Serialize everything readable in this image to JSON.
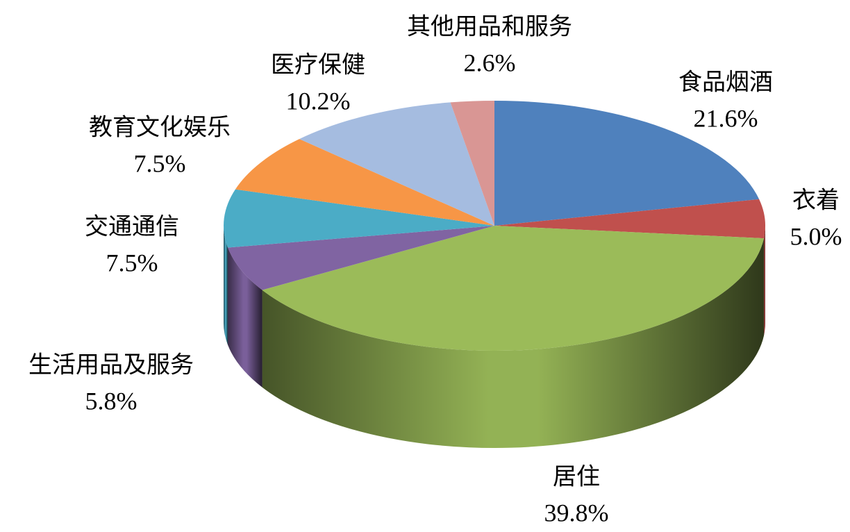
{
  "chart_data": {
    "type": "pie3d",
    "categories": [
      "食品烟酒",
      "衣着",
      "居住",
      "生活用品及服务",
      "交通通信",
      "教育文化娱乐",
      "医疗保健",
      "其他用品和服务"
    ],
    "values": [
      21.6,
      5.0,
      39.8,
      5.8,
      7.5,
      7.5,
      10.2,
      2.6
    ],
    "value_labels": [
      "21.6%",
      "5.0%",
      "39.8%",
      "5.8%",
      "7.5%",
      "7.5%",
      "10.2%",
      "2.6%"
    ],
    "colors": [
      "#4f81bd",
      "#c0504d",
      "#9bbb59",
      "#8064a2",
      "#4bacc6",
      "#f79646",
      "#a5bce0",
      "#d99694"
    ]
  }
}
